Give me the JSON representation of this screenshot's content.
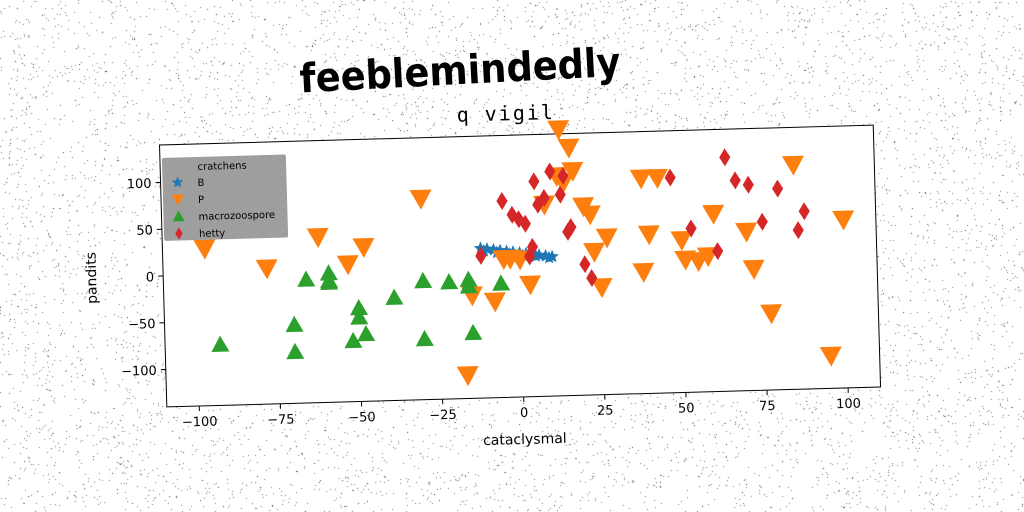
{
  "banner": "feeblemindedly",
  "chart_data": {
    "type": "scatter",
    "title": "q vigil",
    "xlabel": "cataclysmal",
    "ylabel": "pandits",
    "xlim": [
      -110,
      110
    ],
    "ylim": [
      -140,
      140
    ],
    "xticks": [
      -100,
      -75,
      -50,
      -25,
      0,
      25,
      50,
      75,
      100
    ],
    "xtick_labels": [
      "−100",
      "−75",
      "−50",
      "−25",
      "0",
      "25",
      "50",
      "75",
      "100"
    ],
    "yticks": [
      -100,
      -50,
      0,
      50,
      100
    ],
    "ytick_labels": [
      "−100",
      "−50",
      "0",
      "50",
      "100"
    ],
    "grid": false,
    "legend": {
      "title": "cratchens",
      "placement": "top-left",
      "facecolor": "#999999"
    },
    "series": [
      {
        "name": "B",
        "marker": "star",
        "color": "#1f77b4",
        "x": [
          -12,
          -10,
          -8,
          -6,
          -4,
          -2,
          0,
          2,
          4,
          6,
          8,
          10,
          -11,
          -7,
          -3,
          1,
          5,
          9
        ],
        "y": [
          20,
          19,
          18,
          17,
          16,
          15,
          14,
          13,
          12,
          11,
          10,
          9,
          17,
          15,
          13,
          11,
          10,
          8
        ]
      },
      {
        "name": "P",
        "marker": "triangle-down",
        "color": "#ff7f0e",
        "x": [
          -97,
          -78,
          -62,
          -53,
          -48,
          -30,
          -15,
          -17,
          -8,
          -5,
          -3,
          0,
          3,
          8,
          12,
          13,
          16,
          14,
          17,
          20,
          22,
          23,
          27,
          25,
          38,
          40,
          38,
          43,
          50,
          51,
          55,
          58,
          60,
          70,
          72,
          77,
          85,
          100,
          95
        ],
        "y": [
          28,
          5,
          37,
          7,
          25,
          75,
          -30,
          -115,
          -37,
          8,
          8,
          7,
          -20,
          65,
          95,
          145,
          125,
          88,
          100,
          62,
          53,
          13,
          28,
          -25,
          90,
          30,
          -10,
          90,
          23,
          2,
          0,
          5,
          50,
          30,
          -10,
          -58,
          100,
          40,
          -105
        ]
      },
      {
        "name": "macrozoospore",
        "marker": "triangle-up",
        "color": "#2ca02c",
        "x": [
          -93,
          -70,
          -70,
          -66,
          -59,
          -59,
          -59,
          -52,
          -50,
          -50,
          -48,
          -39,
          -30,
          -30,
          -22,
          -16,
          -16,
          -15,
          -6
        ],
        "y": [
          -75,
          -85,
          -56,
          -8,
          -10,
          -2,
          -12,
          -75,
          -40,
          -50,
          -68,
          -30,
          -75,
          -13,
          -15,
          -20,
          -13,
          -70,
          -18
        ]
      },
      {
        "name": "hetty",
        "marker": "diamond",
        "color": "#d62728",
        "x": [
          -12,
          -5,
          -2,
          0,
          2,
          3,
          4,
          5,
          6,
          8,
          10,
          13,
          14,
          15,
          16,
          20,
          22,
          47,
          53,
          61,
          64,
          67,
          71,
          75,
          80,
          86,
          88
        ],
        "y": [
          12,
          70,
          55,
          50,
          45,
          10,
          20,
          90,
          65,
          72,
          100,
          75,
          95,
          35,
          40,
          0,
          -15,
          90,
          35,
          10,
          110,
          85,
          80,
          40,
          75,
          30,
          50
        ]
      }
    ]
  }
}
